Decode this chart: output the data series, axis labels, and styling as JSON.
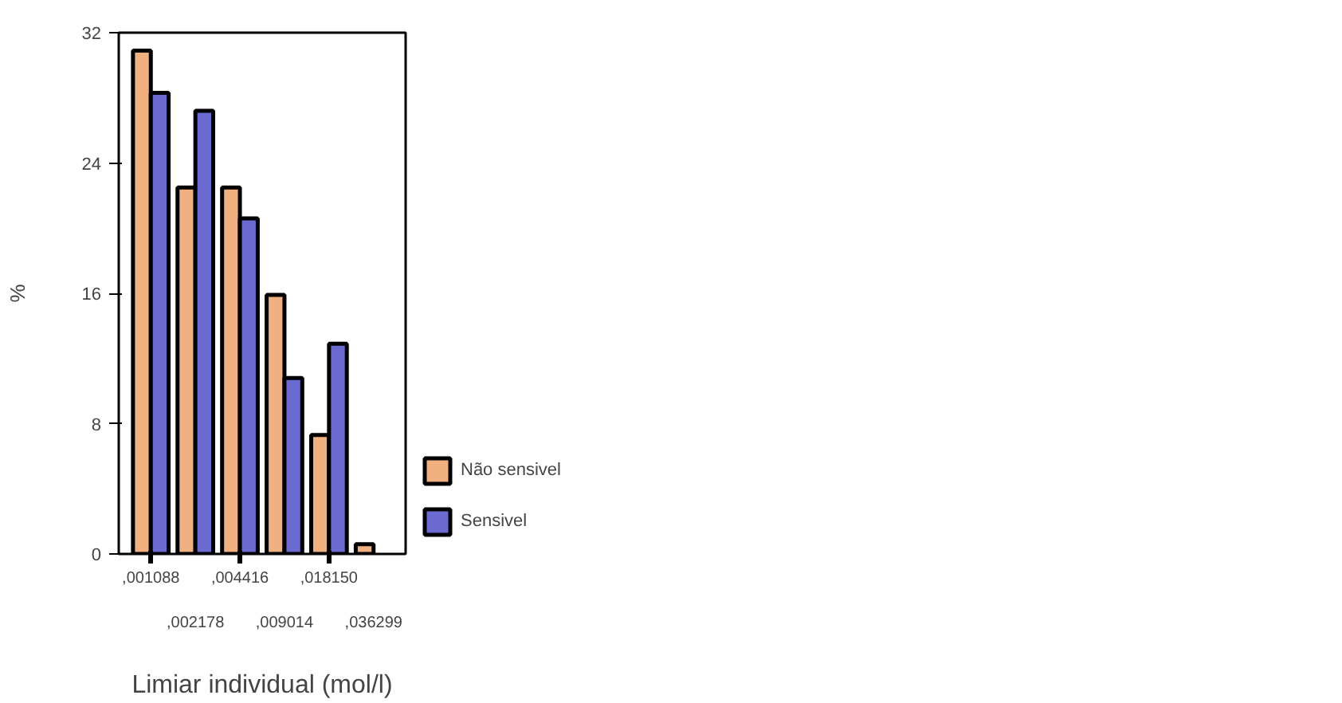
{
  "chart_data": {
    "type": "bar",
    "xlabel": "Limiar individual (mol/l)",
    "ylabel": "%",
    "categories": [
      ",001088",
      ",002178",
      ",004416",
      ",009014",
      ",018150",
      ",036299"
    ],
    "series": [
      {
        "name": "Não sensivel",
        "color": "#f0b080",
        "values": [
          30.9,
          22.5,
          22.5,
          15.9,
          7.3,
          0.6
        ]
      },
      {
        "name": "Sensivel",
        "color": "#6a6ad0",
        "values": [
          28.3,
          27.2,
          20.6,
          10.8,
          12.9,
          null
        ]
      }
    ],
    "ylim": [
      0,
      32
    ],
    "yticks": [
      0,
      8,
      16,
      24,
      32
    ],
    "legend": "right"
  }
}
